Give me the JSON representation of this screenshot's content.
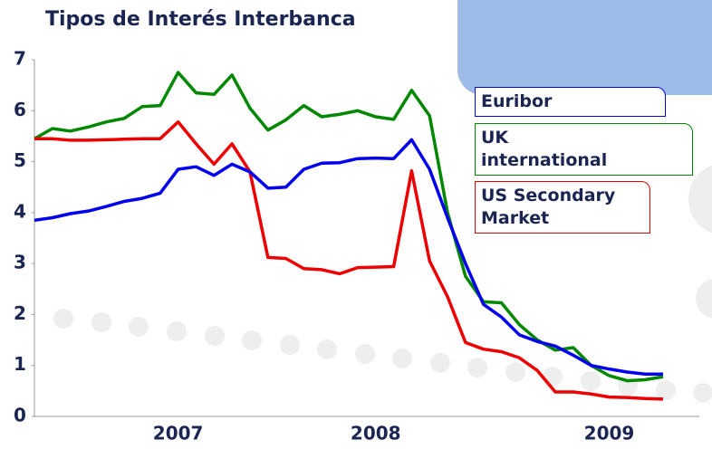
{
  "chart_data": {
    "type": "line",
    "title": "Tipos de Interés Interbanca",
    "categories": [
      null,
      null,
      null,
      null,
      null,
      null,
      null,
      null,
      "2007",
      null,
      null,
      null,
      null,
      null,
      null,
      null,
      null,
      null,
      null,
      "2008",
      null,
      null,
      null,
      null,
      null,
      null,
      null,
      null,
      null,
      null,
      null,
      null,
      "2009",
      null,
      null,
      null
    ],
    "ylim": [
      0,
      7
    ],
    "yticks": [
      0,
      1,
      2,
      3,
      4,
      5,
      6,
      7
    ],
    "series": [
      {
        "name": "Euribor",
        "color": "#0000ee",
        "values": [
          3.85,
          3.9,
          3.98,
          4.03,
          4.12,
          4.22,
          4.28,
          4.38,
          4.85,
          4.9,
          4.73,
          4.95,
          4.8,
          4.48,
          4.5,
          4.85,
          4.97,
          4.98,
          5.06,
          5.07,
          5.06,
          5.43,
          4.85,
          3.9,
          3.0,
          2.2,
          1.95,
          1.6,
          1.47,
          1.38,
          1.2,
          1.0,
          0.93,
          0.87,
          0.83,
          0.83
        ]
      },
      {
        "name": "UK international",
        "color": "#008800",
        "values": [
          5.45,
          5.65,
          5.6,
          5.68,
          5.78,
          5.85,
          6.08,
          6.1,
          6.75,
          6.35,
          6.32,
          6.7,
          6.05,
          5.62,
          5.82,
          6.1,
          5.88,
          5.93,
          6.0,
          5.88,
          5.83,
          6.4,
          5.9,
          4.0,
          2.75,
          2.25,
          2.23,
          1.8,
          1.5,
          1.3,
          1.35,
          1.0,
          0.8,
          0.7,
          0.72,
          0.78
        ]
      },
      {
        "name": "US Secondary Market",
        "color": "#ee0000",
        "values": [
          5.45,
          5.45,
          5.42,
          5.42,
          5.43,
          5.44,
          5.45,
          5.45,
          5.78,
          5.35,
          4.95,
          5.35,
          4.8,
          3.12,
          3.1,
          2.9,
          2.88,
          2.8,
          2.92,
          2.93,
          2.94,
          4.82,
          3.05,
          2.35,
          1.45,
          1.32,
          1.27,
          1.15,
          0.9,
          0.48,
          0.48,
          0.44,
          0.38,
          0.37,
          0.35,
          0.34
        ]
      }
    ]
  }
}
